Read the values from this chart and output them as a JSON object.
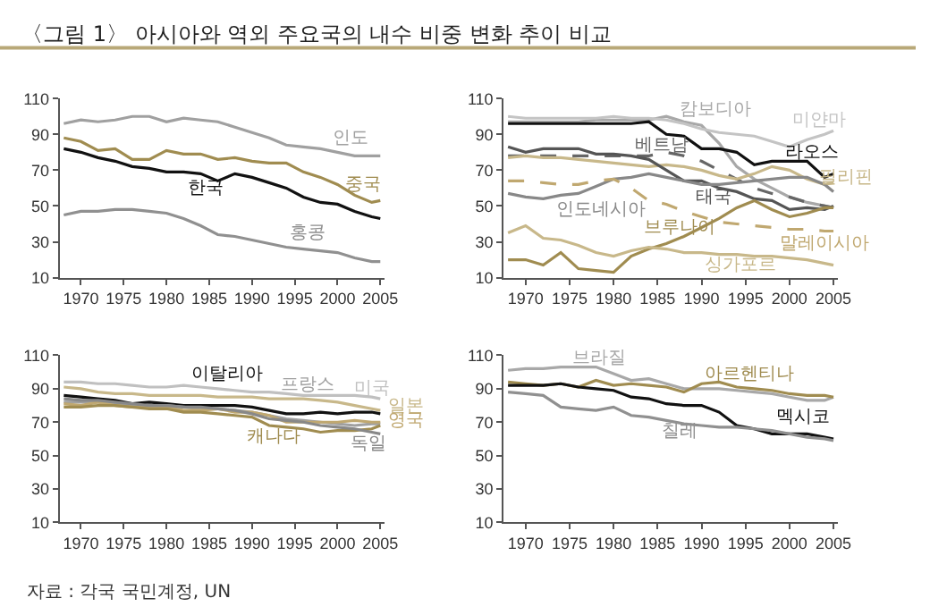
{
  "chart_data": [
    {
      "type": "line",
      "title": "〈그림 1〉 아시아와 역외 주요국의 내수 비중 변화 추이 비교",
      "x": [
        1968,
        1970,
        1972,
        1974,
        1976,
        1978,
        1980,
        1982,
        1984,
        1986,
        1988,
        1990,
        1992,
        1994,
        1996,
        1998,
        2000,
        2002,
        2004,
        2005
      ],
      "xlim": [
        1967.5,
        2005.5
      ],
      "xticks": [
        1970,
        1975,
        1980,
        1985,
        1990,
        1995,
        2000,
        2005
      ],
      "ylim": [
        10,
        110
      ],
      "yticks": [
        10,
        30,
        50,
        70,
        90,
        110
      ],
      "legend": false,
      "series": [
        {
          "name": "인도",
          "color": "#a0a0a0",
          "values": [
            96,
            98,
            97,
            98,
            100,
            100,
            97,
            99,
            98,
            97,
            94,
            91,
            88,
            84,
            83,
            82,
            80,
            78,
            78,
            78
          ]
        },
        {
          "name": "중국",
          "color": "#a08c50",
          "values": [
            88,
            86,
            81,
            82,
            76,
            76,
            81,
            79,
            79,
            76,
            77,
            75,
            74,
            74,
            69,
            66,
            62,
            56,
            52,
            53
          ]
        },
        {
          "name": "한국",
          "color": "#111111",
          "values": [
            82,
            80,
            77,
            75,
            72,
            71,
            69,
            69,
            68,
            64,
            68,
            66,
            63,
            60,
            55,
            52,
            51,
            47,
            44,
            43
          ]
        },
        {
          "name": "홍콩",
          "color": "#909090",
          "values": [
            45,
            47,
            47,
            48,
            48,
            47,
            46,
            43,
            39,
            34,
            33,
            31,
            29,
            27,
            26,
            25,
            24,
            21,
            19,
            19
          ]
        }
      ]
    },
    {
      "type": "line",
      "x": [
        1968,
        1970,
        1972,
        1974,
        1976,
        1978,
        1980,
        1982,
        1984,
        1986,
        1988,
        1990,
        1992,
        1994,
        1996,
        1998,
        2000,
        2002,
        2004,
        2005
      ],
      "xlim": [
        1967.5,
        2005.5
      ],
      "xticks": [
        1970,
        1975,
        1980,
        1985,
        1990,
        1995,
        2000,
        2005
      ],
      "ylim": [
        10,
        110
      ],
      "yticks": [
        10,
        30,
        50,
        70,
        90,
        110
      ],
      "legend": false,
      "series": [
        {
          "name": "캄보디아",
          "color": "#a8a8a8",
          "values": [
            97,
            97,
            97,
            97,
            97,
            98,
            98,
            98,
            98,
            100,
            97,
            95,
            85,
            72,
            65,
            60,
            55,
            52,
            50,
            49
          ]
        },
        {
          "name": "미얀마",
          "color": "#c4c4c4",
          "values": [
            100,
            99,
            99,
            99,
            99,
            99,
            100,
            99,
            99,
            98,
            96,
            93,
            91,
            90,
            89,
            86,
            83,
            87,
            90,
            92
          ]
        },
        {
          "name": "베트남",
          "color": "#666666",
          "line_style": "dashed",
          "values": [
            78,
            78,
            78,
            78,
            78,
            78,
            78,
            78,
            78,
            80,
            78,
            75,
            70,
            65,
            60,
            57,
            55,
            52,
            50,
            49
          ]
        },
        {
          "name": "라오스",
          "color": "#111111",
          "values": [
            96,
            96,
            96,
            96,
            96,
            96,
            96,
            96,
            97,
            90,
            89,
            82,
            82,
            80,
            73,
            75,
            75,
            75,
            66,
            68
          ]
        },
        {
          "name": "필리핀",
          "color": "#c8b88a",
          "values": [
            77,
            78,
            77,
            77,
            76,
            75,
            74,
            73,
            72,
            73,
            72,
            70,
            67,
            65,
            68,
            72,
            70,
            65,
            62,
            63
          ]
        },
        {
          "name": "태국",
          "color": "#555555",
          "values": [
            83,
            80,
            82,
            82,
            82,
            79,
            79,
            78,
            76,
            70,
            64,
            64,
            60,
            58,
            54,
            53,
            48,
            49,
            48,
            50
          ]
        },
        {
          "name": "인도네시아",
          "color": "#888888",
          "values": [
            57,
            55,
            54,
            56,
            57,
            61,
            65,
            66,
            68,
            66,
            64,
            62,
            62,
            63,
            64,
            65,
            66,
            66,
            62,
            58
          ]
        },
        {
          "name": "말레이시아",
          "color": "#c0a870",
          "line_style": "dashed",
          "values": [
            64,
            64,
            63,
            62,
            62,
            64,
            65,
            60,
            53,
            51,
            47,
            44,
            41,
            40,
            39,
            38,
            37,
            37,
            36,
            36
          ]
        },
        {
          "name": "브루나이",
          "color": "#a08c50",
          "values": [
            20,
            20,
            17,
            24,
            15,
            14,
            13,
            22,
            26,
            29,
            33,
            38,
            43,
            49,
            53,
            48,
            44,
            46,
            49,
            49
          ]
        },
        {
          "name": "싱가포르",
          "color": "#c8b88a",
          "values": [
            35,
            39,
            32,
            31,
            28,
            24,
            22,
            25,
            27,
            26,
            24,
            24,
            23,
            23,
            22,
            22,
            21,
            20,
            18,
            17
          ]
        }
      ]
    },
    {
      "type": "line",
      "x": [
        1968,
        1970,
        1972,
        1974,
        1976,
        1978,
        1980,
        1982,
        1984,
        1986,
        1988,
        1990,
        1992,
        1994,
        1996,
        1998,
        2000,
        2002,
        2004,
        2005
      ],
      "xlim": [
        1967.5,
        2005.5
      ],
      "xticks": [
        1970,
        1975,
        1980,
        1985,
        1990,
        1995,
        2000,
        2005
      ],
      "ylim": [
        10,
        110
      ],
      "yticks": [
        10,
        30,
        50,
        70,
        90,
        110
      ],
      "legend": false,
      "annotations": [
        "자료 : 각국 국민계정, UN"
      ],
      "series": [
        {
          "name": "미국",
          "color": "#c0c0c0",
          "values": [
            94,
            94,
            93,
            93,
            92,
            91,
            91,
            92,
            91,
            90,
            89,
            88,
            88,
            87,
            86,
            86,
            86,
            86,
            85,
            84
          ]
        },
        {
          "name": "일본",
          "color": "#c8b88a",
          "values": [
            91,
            90,
            88,
            87,
            87,
            86,
            86,
            86,
            86,
            85,
            85,
            85,
            84,
            84,
            84,
            83,
            82,
            80,
            78,
            77
          ]
        },
        {
          "name": "이탈리아",
          "color": "#111111",
          "values": [
            86,
            85,
            84,
            83,
            81,
            82,
            81,
            80,
            80,
            80,
            80,
            79,
            77,
            75,
            75,
            76,
            75,
            76,
            76,
            75
          ]
        },
        {
          "name": "프랑스",
          "color": "#a0a0a0",
          "values": [
            82,
            82,
            82,
            81,
            80,
            80,
            80,
            79,
            78,
            78,
            77,
            76,
            74,
            72,
            71,
            70,
            69,
            68,
            69,
            69
          ]
        },
        {
          "name": "영국",
          "color": "#c0a870",
          "values": [
            81,
            80,
            82,
            80,
            79,
            79,
            79,
            77,
            77,
            78,
            76,
            76,
            74,
            70,
            70,
            70,
            70,
            71,
            70,
            70
          ]
        },
        {
          "name": "캐나다",
          "color": "#a08c50",
          "values": [
            79,
            79,
            80,
            80,
            79,
            78,
            78,
            76,
            76,
            75,
            74,
            73,
            68,
            67,
            66,
            64,
            65,
            65,
            66,
            68
          ]
        },
        {
          "name": "독일",
          "color": "#888888",
          "values": [
            84,
            83,
            83,
            82,
            81,
            80,
            80,
            79,
            79,
            78,
            77,
            75,
            72,
            71,
            70,
            68,
            67,
            66,
            64,
            63
          ]
        }
      ]
    },
    {
      "type": "line",
      "x": [
        1968,
        1970,
        1972,
        1974,
        1976,
        1978,
        1980,
        1982,
        1984,
        1986,
        1988,
        1990,
        1992,
        1994,
        1996,
        1998,
        2000,
        2002,
        2004,
        2005
      ],
      "xlim": [
        1967.5,
        2005.5
      ],
      "xticks": [
        1970,
        1975,
        1980,
        1985,
        1990,
        1995,
        2000,
        2005
      ],
      "ylim": [
        10,
        110
      ],
      "yticks": [
        10,
        30,
        50,
        70,
        90,
        110
      ],
      "legend": false,
      "series": [
        {
          "name": "브라질",
          "color": "#a8a8a8",
          "values": [
            101,
            102,
            102,
            103,
            103,
            103,
            99,
            95,
            96,
            93,
            90,
            90,
            90,
            89,
            88,
            87,
            85,
            83,
            83,
            85
          ]
        },
        {
          "name": "아르헨티나",
          "color": "#a08c50",
          "values": [
            94,
            93,
            92,
            93,
            91,
            95,
            92,
            93,
            92,
            91,
            88,
            93,
            94,
            91,
            90,
            89,
            87,
            86,
            86,
            85
          ]
        },
        {
          "name": "멕시코",
          "color": "#111111",
          "values": [
            92,
            92,
            92,
            93,
            91,
            90,
            89,
            85,
            84,
            81,
            80,
            80,
            76,
            68,
            66,
            63,
            63,
            63,
            61,
            60
          ]
        },
        {
          "name": "칠레",
          "color": "#909090",
          "values": [
            88,
            87,
            86,
            79,
            78,
            77,
            79,
            74,
            73,
            71,
            69,
            68,
            67,
            67,
            66,
            65,
            63,
            61,
            60,
            59
          ]
        }
      ]
    }
  ]
}
